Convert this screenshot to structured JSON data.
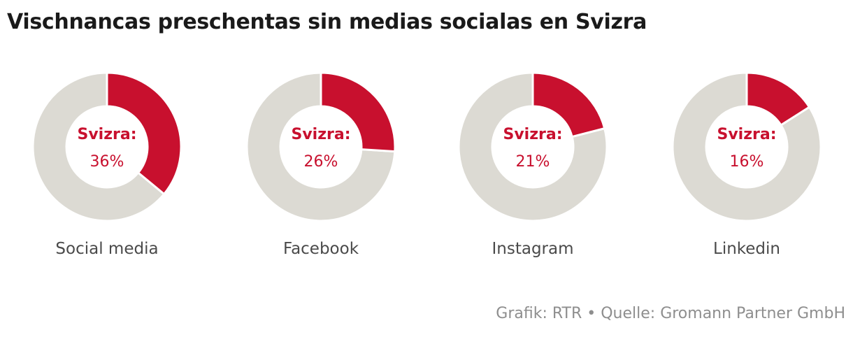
{
  "title": "Vischnancas preschentas sin medias socialas en Svizra",
  "source": "Grafik: RTR • Quelle: Gromann Partner GmbH",
  "colors": {
    "highlight": "#c8102e",
    "remainder": "#dcdad3",
    "text_label": "#4a4a4a",
    "source": "#8e8e8e",
    "title": "#1a1a1a"
  },
  "chart_data": [
    {
      "type": "pie",
      "category": "Social media",
      "center_label": "Svizra:",
      "value_label": "36%",
      "value": 36
    },
    {
      "type": "pie",
      "category": "Facebook",
      "center_label": "Svizra:",
      "value_label": "26%",
      "value": 26
    },
    {
      "type": "pie",
      "category": "Instagram",
      "center_label": "Svizra:",
      "value_label": "21%",
      "value": 21
    },
    {
      "type": "pie",
      "category": "Linkedin",
      "center_label": "Svizra:",
      "value_label": "16%",
      "value": 16
    }
  ]
}
